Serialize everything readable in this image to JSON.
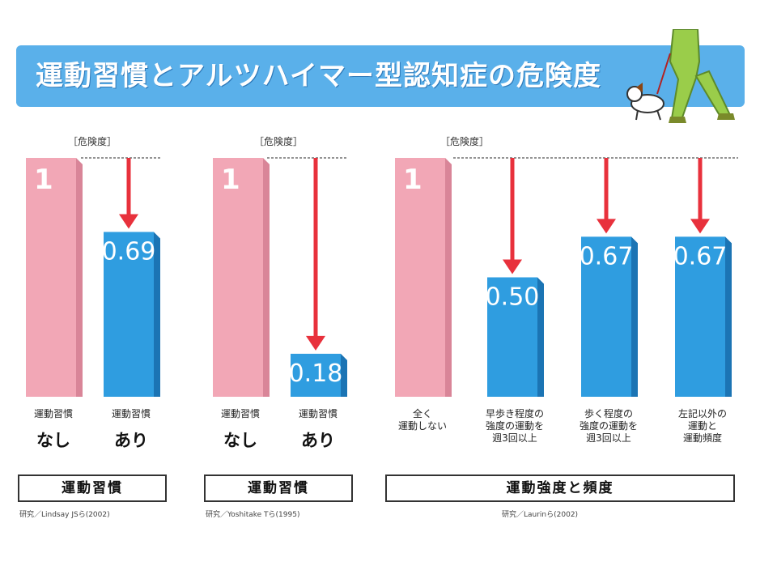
{
  "title": "運動習慣とアルツハイマー型認知症の危険度",
  "danger_label": "［危険度］",
  "colors": {
    "pink": "#f2a7b6",
    "pink_side": "#d98598",
    "blue": "#2f9de0",
    "blue_side": "#1b74b4",
    "arrow": "#e8313c"
  },
  "chart_data": [
    {
      "type": "bar",
      "group_label": "運動習慣",
      "source": "研究／Lindsay JSら(2002)",
      "categories": [
        "運動習慣 なし",
        "運動習慣 あり"
      ],
      "category_top": [
        "運動習慣",
        "運動習慣"
      ],
      "category_big": [
        "なし",
        "あり"
      ],
      "values": [
        1,
        0.69
      ],
      "value_labels": [
        "1",
        "0.69"
      ],
      "ylim": [
        0,
        1
      ]
    },
    {
      "type": "bar",
      "group_label": "運動習慣",
      "source": "研究／Yoshitake Tら(1995)",
      "categories": [
        "運動習慣 なし",
        "運動習慣 あり"
      ],
      "category_top": [
        "運動習慣",
        "運動習慣"
      ],
      "category_big": [
        "なし",
        "あり"
      ],
      "values": [
        1,
        0.18
      ],
      "value_labels": [
        "1",
        "0.18"
      ],
      "ylim": [
        0,
        1
      ]
    },
    {
      "type": "bar",
      "group_label": "運動強度と頻度",
      "source": "研究／Laurinら(2002)",
      "categories": [
        "全く運動しない",
        "早歩き程度の強度の運動を週3回以上",
        "歩く程度の強度の運動を週3回以上",
        "左記以外の運動と運動頻度"
      ],
      "category_top": [
        "全く\n運動しない",
        "早歩き程度の\n強度の運動を\n週3回以上",
        "歩く程度の\n強度の運動を\n週3回以上",
        "左記以外の\n運動と\n運動頻度"
      ],
      "category_big": [
        "",
        "",
        "",
        ""
      ],
      "values": [
        1,
        0.5,
        0.67,
        0.67
      ],
      "value_labels": [
        "1",
        "0.50",
        "0.67",
        "0.67"
      ],
      "ylim": [
        0,
        1
      ]
    }
  ]
}
